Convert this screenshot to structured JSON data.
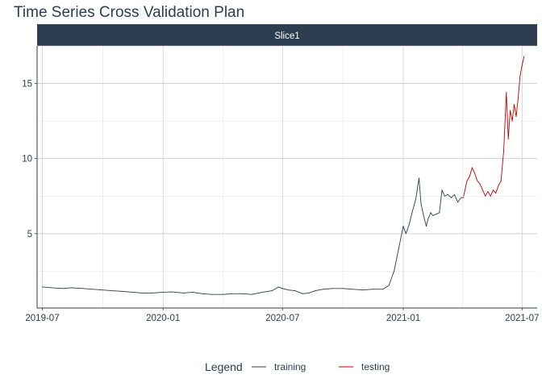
{
  "chart_data": {
    "type": "line",
    "title": "Time Series Cross Validation Plan",
    "facet_label": "Slice1",
    "xlabel": "",
    "ylabel": "",
    "x_ticks": [
      "2019-07",
      "2020-01",
      "2020-07",
      "2021-01",
      "2021-07"
    ],
    "y_ticks": [
      5,
      10,
      15
    ],
    "ylim": [
      0.05,
      17.5
    ],
    "xlim": [
      "2019-06-23",
      "2021-07-24"
    ],
    "grid": true,
    "legend": {
      "title": "Legend",
      "position": "bottom",
      "entries": [
        {
          "label": "training",
          "color": "#2c3e50"
        },
        {
          "label": "testing",
          "color": "#c40000"
        }
      ]
    },
    "series": [
      {
        "name": "training",
        "color": "#2c3e50",
        "x": [
          "2019-07-01",
          "2019-07-15",
          "2019-08-01",
          "2019-08-15",
          "2019-09-01",
          "2019-09-15",
          "2019-10-01",
          "2019-10-15",
          "2019-11-01",
          "2019-11-15",
          "2019-12-01",
          "2019-12-15",
          "2020-01-01",
          "2020-01-15",
          "2020-02-01",
          "2020-02-15",
          "2020-03-01",
          "2020-03-15",
          "2020-04-01",
          "2020-04-15",
          "2020-05-01",
          "2020-05-15",
          "2020-06-01",
          "2020-06-15",
          "2020-06-25",
          "2020-07-01",
          "2020-07-10",
          "2020-07-20",
          "2020-08-01",
          "2020-08-10",
          "2020-08-20",
          "2020-09-01",
          "2020-09-15",
          "2020-10-01",
          "2020-10-15",
          "2020-11-01",
          "2020-11-15",
          "2020-12-01",
          "2020-12-10",
          "2020-12-18",
          "2020-12-25",
          "2021-01-01",
          "2021-01-05",
          "2021-01-10",
          "2021-01-15",
          "2021-01-20",
          "2021-01-25",
          "2021-01-28",
          "2021-02-01",
          "2021-02-05",
          "2021-02-08",
          "2021-02-12",
          "2021-02-15",
          "2021-02-20",
          "2021-02-25",
          "2021-03-01",
          "2021-03-05",
          "2021-03-10",
          "2021-03-15",
          "2021-03-20",
          "2021-03-25",
          "2021-03-30",
          "2021-04-03"
        ],
        "values": [
          1.45,
          1.4,
          1.35,
          1.4,
          1.35,
          1.3,
          1.25,
          1.2,
          1.15,
          1.1,
          1.05,
          1.05,
          1.1,
          1.12,
          1.05,
          1.1,
          1.0,
          0.95,
          0.95,
          1.0,
          1.0,
          0.95,
          1.1,
          1.2,
          1.45,
          1.35,
          1.25,
          1.2,
          1.0,
          1.05,
          1.2,
          1.3,
          1.35,
          1.35,
          1.3,
          1.25,
          1.3,
          1.3,
          1.55,
          2.5,
          4.0,
          5.5,
          5.0,
          5.6,
          6.5,
          7.3,
          8.7,
          7.0,
          6.2,
          5.5,
          6.0,
          6.4,
          6.2,
          6.3,
          6.4,
          7.9,
          7.5,
          7.6,
          7.4,
          7.6,
          7.1,
          7.4,
          7.4
        ]
      },
      {
        "name": "testing",
        "color": "#c40000",
        "x": [
          "2021-04-03",
          "2021-04-08",
          "2021-04-12",
          "2021-04-16",
          "2021-04-20",
          "2021-04-24",
          "2021-04-28",
          "2021-05-02",
          "2021-05-06",
          "2021-05-10",
          "2021-05-14",
          "2021-05-18",
          "2021-05-22",
          "2021-05-26",
          "2021-05-30",
          "2021-06-03",
          "2021-06-07",
          "2021-06-10",
          "2021-06-13",
          "2021-06-16",
          "2021-06-19",
          "2021-06-22",
          "2021-06-25",
          "2021-06-28",
          "2021-07-01",
          "2021-07-04"
        ],
        "values": [
          7.5,
          8.5,
          8.8,
          9.4,
          9.0,
          8.5,
          8.3,
          7.9,
          7.5,
          7.8,
          7.5,
          7.9,
          7.7,
          8.2,
          8.5,
          10.5,
          14.4,
          11.3,
          13.2,
          12.5,
          13.6,
          12.8,
          14.0,
          15.5,
          16.2,
          16.8
        ]
      }
    ]
  }
}
